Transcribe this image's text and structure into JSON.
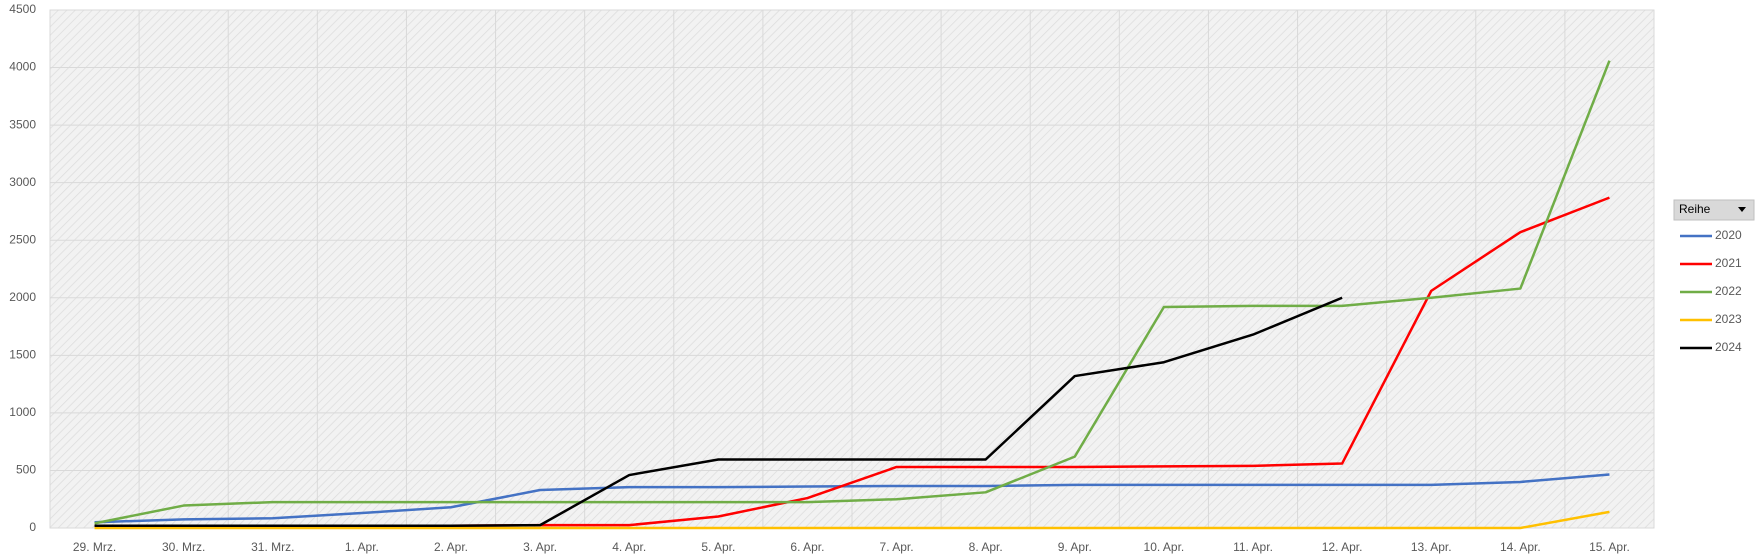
{
  "chart_data": {
    "type": "line",
    "categories": [
      "29. Mrz.",
      "30. Mrz.",
      "31. Mrz.",
      "1. Apr.",
      "2. Apr.",
      "3. Apr.",
      "4. Apr.",
      "5. Apr.",
      "6. Apr.",
      "7. Apr.",
      "8. Apr.",
      "9. Apr.",
      "10. Apr.",
      "11. Apr.",
      "12. Apr.",
      "13. Apr.",
      "14. Apr.",
      "15. Apr."
    ],
    "series": [
      {
        "name": "2020",
        "color": "#4472c4",
        "values": [
          50,
          75,
          85,
          130,
          180,
          330,
          355,
          355,
          360,
          365,
          365,
          375,
          375,
          375,
          375,
          375,
          400,
          465
        ]
      },
      {
        "name": "2021",
        "color": "#ff0000",
        "values": [
          20,
          20,
          20,
          20,
          20,
          25,
          25,
          100,
          260,
          530,
          530,
          530,
          535,
          540,
          560,
          2060,
          2570,
          2870
        ]
      },
      {
        "name": "2022",
        "color": "#70ad47",
        "values": [
          40,
          195,
          225,
          225,
          225,
          225,
          225,
          225,
          225,
          250,
          310,
          620,
          1920,
          1930,
          1930,
          2000,
          2080,
          4060
        ]
      },
      {
        "name": "2023",
        "color": "#ffc000",
        "values": [
          0,
          0,
          0,
          0,
          0,
          0,
          0,
          0,
          0,
          0,
          0,
          0,
          0,
          0,
          0,
          0,
          0,
          140
        ]
      },
      {
        "name": "2024",
        "color": "#000000",
        "values": [
          20,
          20,
          20,
          20,
          20,
          25,
          460,
          595,
          595,
          595,
          595,
          1320,
          1440,
          1680,
          2000,
          null,
          null,
          null
        ]
      }
    ],
    "legend_title": "Reihe",
    "ylim": [
      0,
      4500
    ],
    "yticks": [
      0,
      500,
      1000,
      1500,
      2000,
      2500,
      3000,
      3500,
      4000,
      4500
    ],
    "grid": true,
    "legend": "right"
  }
}
